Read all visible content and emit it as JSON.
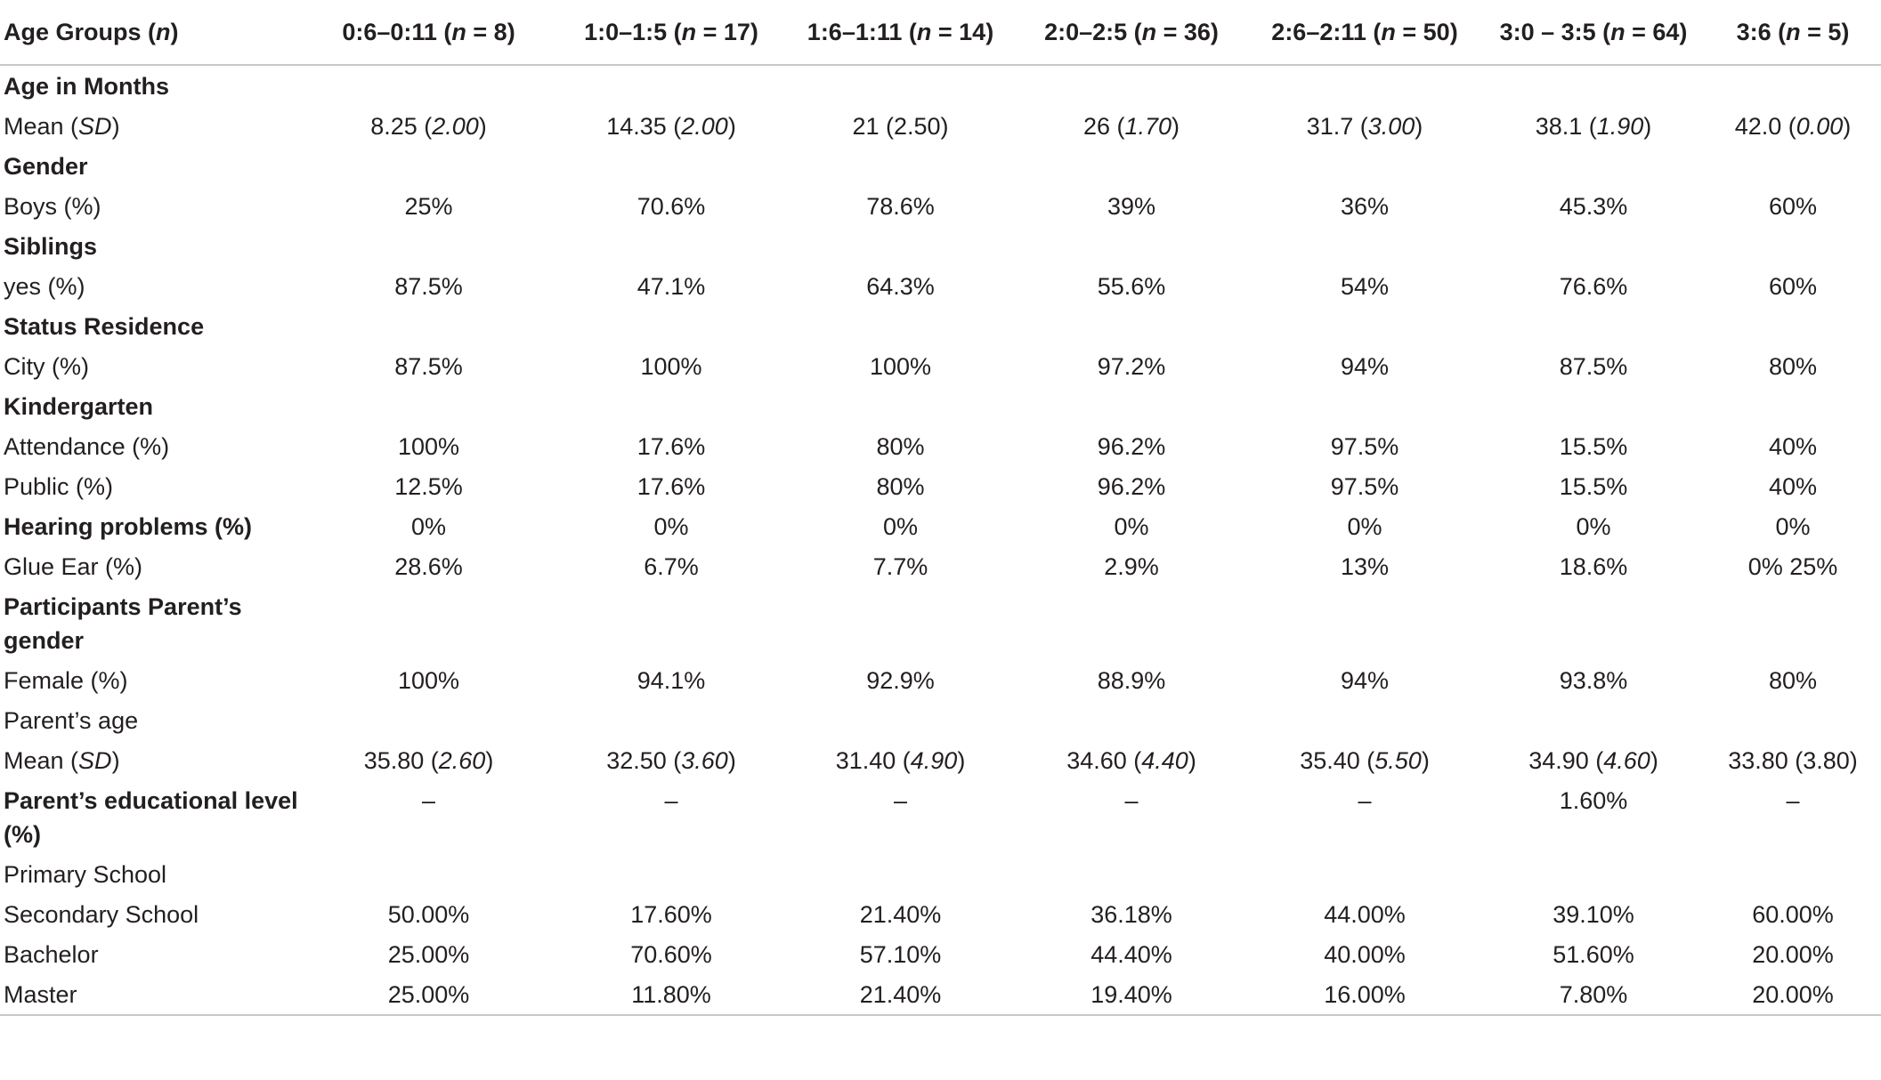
{
  "table": {
    "columns": [
      [
        "Age Groups (",
        "n",
        ")"
      ],
      [
        "0:6–0:11 (",
        "n",
        " = 8)"
      ],
      [
        "1:0–1:5 (",
        "n",
        " = 17)"
      ],
      [
        "1:6–1:11 (",
        "n",
        " = 14)"
      ],
      [
        "2:0–2:5 (",
        "n",
        " = 36)"
      ],
      [
        "2:6–2:11 (",
        "n",
        " = 50)"
      ],
      [
        "3:0 – 3:5 (",
        "n",
        " = 64)"
      ],
      [
        "3:6 (",
        "n",
        " = 5)"
      ]
    ],
    "rows": [
      {
        "label": [
          "Age in Months"
        ],
        "heading": true
      },
      {
        "label": [
          "Mean (",
          "SD",
          ")"
        ],
        "cells": [
          [
            "8.25 (",
            "2.00",
            ")"
          ],
          [
            "14.35 (",
            "2.00",
            ")"
          ],
          [
            "21 (2.50)"
          ],
          [
            "26 (",
            "1.70",
            ")"
          ],
          [
            "31.7 (",
            "3.00",
            ")"
          ],
          [
            "38.1 (",
            "1.90",
            ")"
          ],
          [
            "42.0 (",
            "0.00",
            ")"
          ]
        ]
      },
      {
        "label": [
          "Gender"
        ],
        "heading": true
      },
      {
        "label": [
          "Boys (%)"
        ],
        "cells": [
          [
            "25%"
          ],
          [
            "70.6%"
          ],
          [
            "78.6%"
          ],
          [
            "39%"
          ],
          [
            "36%"
          ],
          [
            "45.3%"
          ],
          [
            "60%"
          ]
        ]
      },
      {
        "label": [
          "Siblings"
        ],
        "heading": true
      },
      {
        "label": [
          "yes (%)"
        ],
        "cells": [
          [
            "87.5%"
          ],
          [
            "47.1%"
          ],
          [
            "64.3%"
          ],
          [
            "55.6%"
          ],
          [
            "54%"
          ],
          [
            "76.6%"
          ],
          [
            "60%"
          ]
        ]
      },
      {
        "label": [
          "Status Residence"
        ],
        "heading": true
      },
      {
        "label": [
          "City (%)"
        ],
        "cells": [
          [
            "87.5%"
          ],
          [
            "100%"
          ],
          [
            "100%"
          ],
          [
            "97.2%"
          ],
          [
            "94%"
          ],
          [
            "87.5%"
          ],
          [
            "80%"
          ]
        ]
      },
      {
        "label": [
          "Kindergarten"
        ],
        "heading": true
      },
      {
        "label": [
          "Attendance (%)"
        ],
        "cells": [
          [
            "100%"
          ],
          [
            "17.6%"
          ],
          [
            "80%"
          ],
          [
            "96.2%"
          ],
          [
            "97.5%"
          ],
          [
            "15.5%"
          ],
          [
            "40%"
          ]
        ]
      },
      {
        "label": [
          "Public (%)"
        ],
        "cells": [
          [
            "12.5%"
          ],
          [
            "17.6%"
          ],
          [
            "80%"
          ],
          [
            "96.2%"
          ],
          [
            "97.5%"
          ],
          [
            "15.5%"
          ],
          [
            "40%"
          ]
        ]
      },
      {
        "label": [
          "Hearing problems (%)"
        ],
        "heading": true,
        "cells": [
          [
            "0%"
          ],
          [
            "0%"
          ],
          [
            "0%"
          ],
          [
            "0%"
          ],
          [
            "0%"
          ],
          [
            "0%"
          ],
          [
            "0%"
          ]
        ]
      },
      {
        "label": [
          "Glue Ear (%)"
        ],
        "cells": [
          [
            "28.6%"
          ],
          [
            "6.7%"
          ],
          [
            "7.7%"
          ],
          [
            "2.9%"
          ],
          [
            "13%"
          ],
          [
            "18.6%"
          ],
          [
            "0% 25%"
          ]
        ]
      },
      {
        "label": [
          "Participants Parent’s gender"
        ],
        "heading": true
      },
      {
        "label": [
          "Female (%)"
        ],
        "cells": [
          [
            "100%"
          ],
          [
            "94.1%"
          ],
          [
            "92.9%"
          ],
          [
            "88.9%"
          ],
          [
            "94%"
          ],
          [
            "93.8%"
          ],
          [
            "80%"
          ]
        ]
      },
      {
        "label": [
          "Parent’s age"
        ]
      },
      {
        "label": [
          "Mean (",
          "SD",
          ")"
        ],
        "cells": [
          [
            "35.80 (",
            "2.60",
            ")"
          ],
          [
            "32.50 (",
            "3.60",
            ")"
          ],
          [
            "31.40 (",
            "4.90",
            ")"
          ],
          [
            "34.60 (",
            "4.40",
            ")"
          ],
          [
            "35.40 (",
            "5.50",
            ")"
          ],
          [
            "34.90 (",
            "4.60",
            ")"
          ],
          [
            "33.80 (3.80)"
          ]
        ]
      },
      {
        "label": [
          "Parent’s educational level (%)"
        ],
        "heading": true,
        "cells": [
          [
            "–"
          ],
          [
            "–"
          ],
          [
            "–"
          ],
          [
            "–"
          ],
          [
            "–"
          ],
          [
            "1.60%"
          ],
          [
            "–"
          ]
        ]
      },
      {
        "label": [
          "Primary School"
        ]
      },
      {
        "label": [
          "Secondary School"
        ],
        "cells": [
          [
            "50.00%"
          ],
          [
            "17.60%"
          ],
          [
            "21.40%"
          ],
          [
            "36.18%"
          ],
          [
            "44.00%"
          ],
          [
            "39.10%"
          ],
          [
            "60.00%"
          ]
        ]
      },
      {
        "label": [
          "Bachelor"
        ],
        "cells": [
          [
            "25.00%"
          ],
          [
            "70.60%"
          ],
          [
            "57.10%"
          ],
          [
            "44.40%"
          ],
          [
            "40.00%"
          ],
          [
            "51.60%"
          ],
          [
            "20.00%"
          ]
        ]
      },
      {
        "label": [
          "Master"
        ],
        "cells": [
          [
            "25.00%"
          ],
          [
            "11.80%"
          ],
          [
            "21.40%"
          ],
          [
            "19.40%"
          ],
          [
            "16.00%"
          ],
          [
            "7.80%"
          ],
          [
            "20.00%"
          ]
        ]
      }
    ]
  }
}
